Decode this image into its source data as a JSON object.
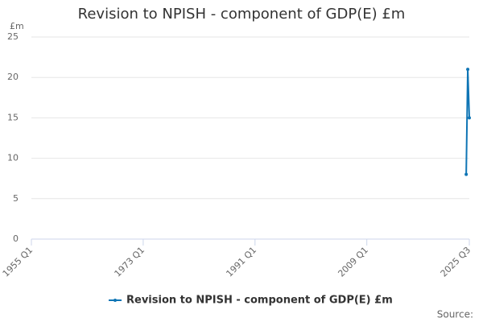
{
  "chart_data": {
    "type": "line",
    "title": "Revision to NPISH - component of GDP(E) £m",
    "y_unit": "£m",
    "x": [
      2025,
      2025.25,
      2025.5
    ],
    "xlim": [
      1955,
      2025.5
    ],
    "xticks": [
      {
        "value": 1955,
        "label": "1955 Q1"
      },
      {
        "value": 1973,
        "label": "1973 Q1"
      },
      {
        "value": 1991,
        "label": "1991 Q1"
      },
      {
        "value": 2009,
        "label": "2009 Q1"
      },
      {
        "value": 2025.5,
        "label": "2025 Q3"
      }
    ],
    "series": [
      {
        "name": "Revision to NPISH - component of GDP(E) £m",
        "color": "#0f75b5",
        "values": [
          8,
          21,
          15
        ]
      }
    ],
    "ylim": [
      0,
      25
    ],
    "yticks": [
      0,
      5,
      10,
      15,
      20,
      25
    ],
    "grid": true,
    "legend": "bottom",
    "source": "Source:"
  }
}
